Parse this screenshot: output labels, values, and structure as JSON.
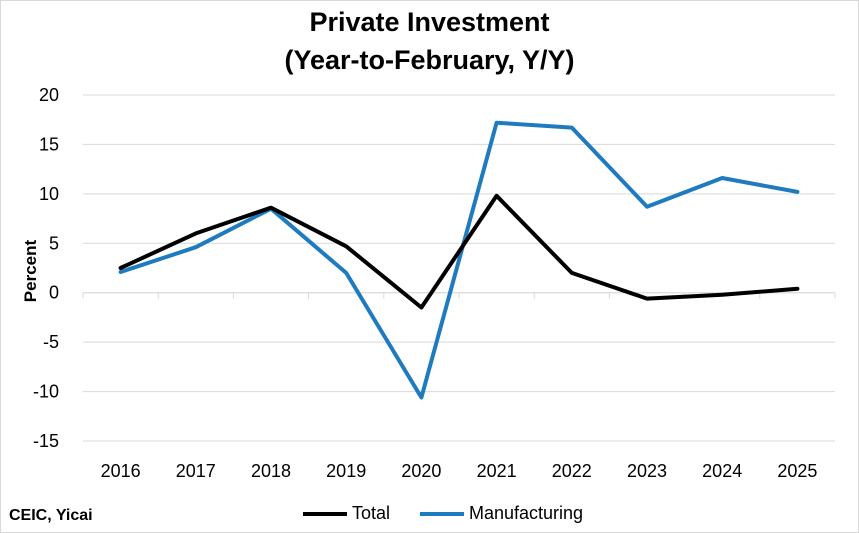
{
  "chart_data": {
    "type": "line",
    "title_lines": [
      "Private Investment",
      "(Year-to-February, Y/Y)"
    ],
    "xlabel": "",
    "ylabel": "Percent",
    "categories": [
      "2016",
      "2017",
      "2018",
      "2019",
      "2020",
      "2021",
      "2022",
      "2023",
      "2024",
      "2025"
    ],
    "ylim": [
      -15,
      20
    ],
    "yticks": [
      -15,
      -10,
      -5,
      0,
      5,
      10,
      15,
      20
    ],
    "grid": true,
    "legend_position": "bottom",
    "series": [
      {
        "name": "Total",
        "color": "#000000",
        "values": [
          2.5,
          6.0,
          8.6,
          4.7,
          -1.5,
          9.8,
          2.0,
          -0.6,
          -0.2,
          0.4
        ]
      },
      {
        "name": "Manufacturing",
        "color": "#1f7bbf",
        "values": [
          2.1,
          4.6,
          8.5,
          2.0,
          -10.6,
          17.2,
          16.7,
          8.7,
          11.6,
          10.2
        ]
      }
    ],
    "source_note": "CEIC, Yicai"
  }
}
